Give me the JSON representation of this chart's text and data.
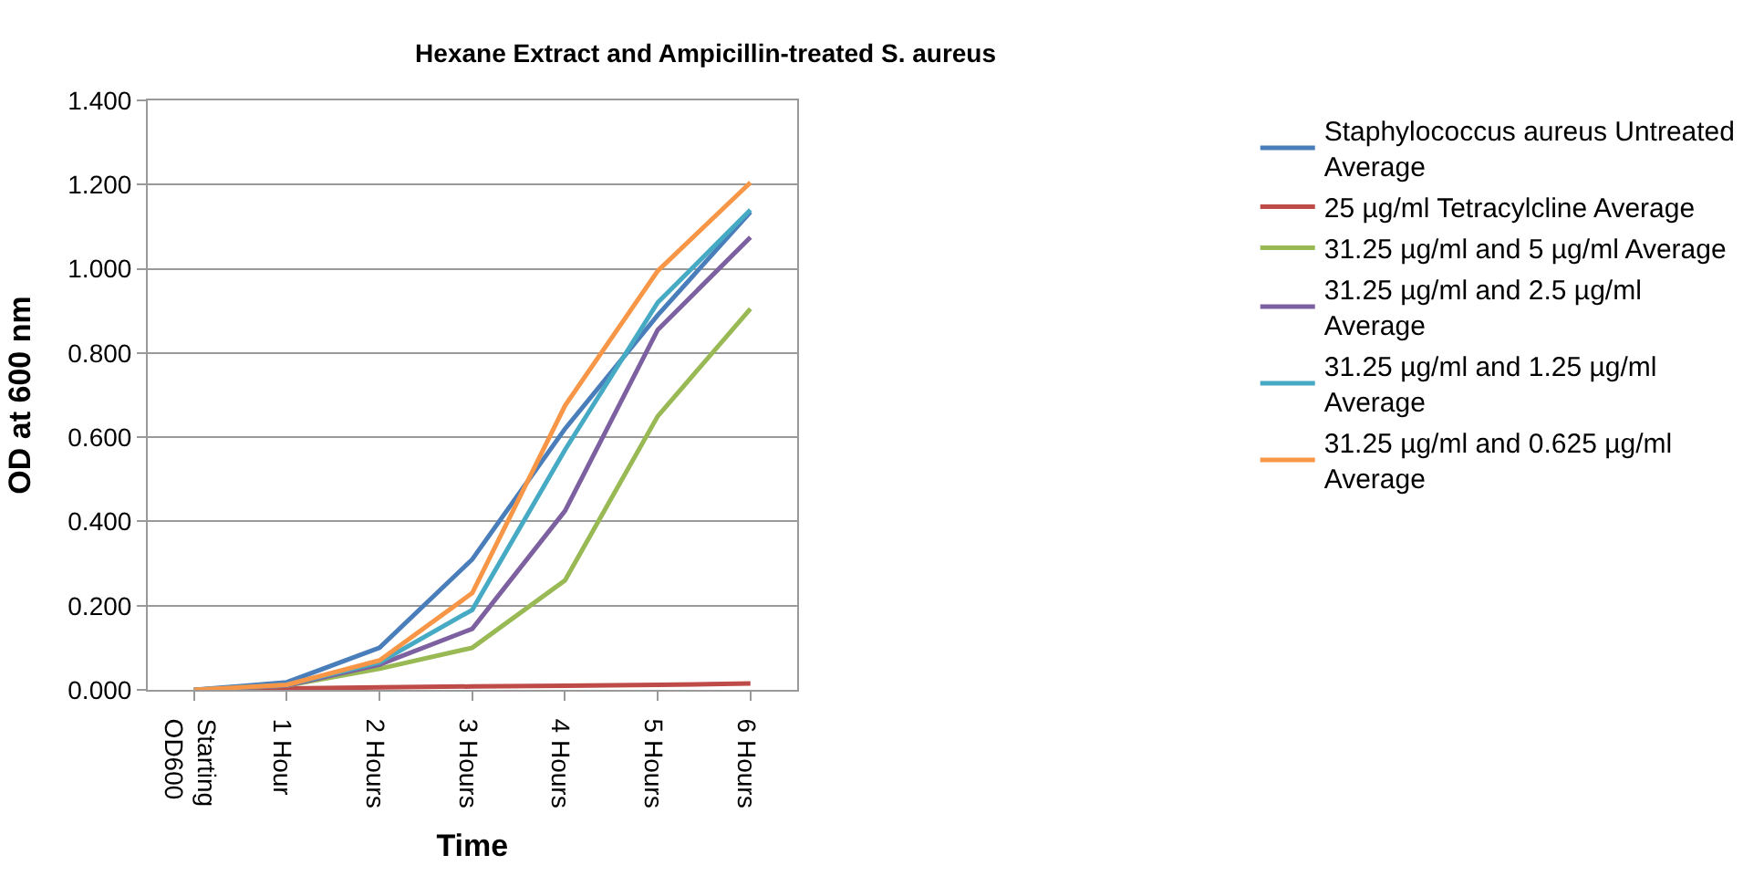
{
  "chart_data": {
    "type": "line",
    "title": "Hexane Extract and Ampicillin-treated S. aureus",
    "xlabel": "Time",
    "ylabel": "OD at 600 nm",
    "categories": [
      "Starting OD600",
      "1 Hour",
      "2 Hours",
      "3 Hours",
      "4 Hours",
      "5 Hours",
      "6 Hours"
    ],
    "series": [
      {
        "name": "Staphylococcus aureus Untreated Average",
        "color": "#4a7ebb",
        "values": [
          0,
          0.018,
          0.1,
          0.31,
          0.62,
          0.89,
          1.135
        ]
      },
      {
        "name": "25 µg/ml Tetracylcline Average",
        "color": "#be4b48",
        "values": [
          0,
          0.003,
          0.006,
          0.008,
          0.01,
          0.012,
          0.015
        ]
      },
      {
        "name": "31.25 µg/ml and 5 µg/ml Average",
        "color": "#98b954",
        "values": [
          0,
          0.01,
          0.05,
          0.1,
          0.26,
          0.65,
          0.905
        ]
      },
      {
        "name": "31.25 µg/ml and 2.5 µg/ml Average",
        "color": "#7d60a0",
        "values": [
          0,
          0.01,
          0.06,
          0.145,
          0.425,
          0.855,
          1.075
        ]
      },
      {
        "name": "31.25 µg/ml and 1.25 µg/ml Average",
        "color": "#46aac5",
        "values": [
          0,
          0.012,
          0.065,
          0.19,
          0.57,
          0.92,
          1.14
        ]
      },
      {
        "name": "31.25 µg/ml and 0.625 µg/ml Average",
        "color": "#f79646",
        "values": [
          0,
          0.012,
          0.07,
          0.23,
          0.675,
          0.995,
          1.205
        ]
      }
    ],
    "ylim": [
      0,
      1.4
    ],
    "yticks": [
      {
        "value": 0,
        "label": "0.000"
      },
      {
        "value": 0.2,
        "label": "0.200"
      },
      {
        "value": 0.4,
        "label": "0.400"
      },
      {
        "value": 0.6,
        "label": "0.600"
      },
      {
        "value": 0.8,
        "label": "0.800"
      },
      {
        "value": 1.0,
        "label": "1.000"
      },
      {
        "value": 1.2,
        "label": "1.200"
      },
      {
        "value": 1.4,
        "label": "1.400"
      }
    ],
    "grid": "y",
    "legend": "right",
    "marker": "none",
    "line_style": "solid"
  }
}
